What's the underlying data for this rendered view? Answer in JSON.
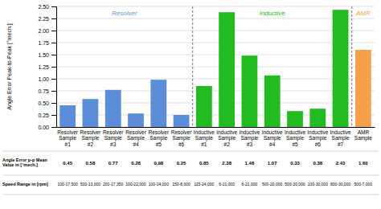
{
  "chart_data": {
    "type": "bar",
    "categories": [
      "Resolver\nSample\n#1",
      "Resolver\nSample\n#2",
      "Resolver\nSample\n#3",
      "Resolver\nSample\n#4",
      "Resolver\nSample\n#5",
      "Resolver\nSample\n#6",
      "Inductive\nSample\n#1",
      "Inductive\nSample\n#2",
      "Inductive\nSample\n#3",
      "Inductive\nSample\n#4",
      "Inductive\nSample\n#5",
      "Inductive\nSample\n#6",
      "Inductive\nSample\n#7",
      "AMR\nSample"
    ],
    "values": [
      0.45,
      0.58,
      0.77,
      0.28,
      0.98,
      0.25,
      0.85,
      2.38,
      1.48,
      1.07,
      0.33,
      0.38,
      2.43,
      1.6
    ],
    "colors": [
      "#5b8dd9",
      "#5b8dd9",
      "#5b8dd9",
      "#5b8dd9",
      "#5b8dd9",
      "#5b8dd9",
      "#22bb22",
      "#22bb22",
      "#22bb22",
      "#22bb22",
      "#22bb22",
      "#22bb22",
      "#22bb22",
      "#f5a04a"
    ],
    "ylabel": "Angle Error Peak-to-Peak [°mech.]",
    "ylim": [
      0,
      2.5
    ],
    "yticks": [
      {
        "value": 0,
        "label": "0.00"
      },
      0.25,
      {
        "value": 0.5,
        "label": "0.50"
      },
      0.75,
      {
        "value": 1,
        "label": "1.00"
      },
      1.25,
      {
        "value": 1.5,
        "label": "1.50"
      },
      1.75,
      {
        "value": 2,
        "label": "2.00"
      },
      2.25,
      {
        "value": 2.5,
        "label": "2.50"
      }
    ],
    "grid": true,
    "groups": [
      {
        "name": "Resolver",
        "color": "#5b9bd5"
      },
      {
        "name": "Inductive",
        "color": "#22bb22"
      },
      {
        "name": "AMR",
        "color": "#f5a04a"
      }
    ],
    "table_rows": [
      {
        "label": "Angle Error p-p Mean\nValue in [°mech.]",
        "cells": [
          "0.45",
          "0.58",
          "0.77",
          "0.28",
          "0.98",
          "0.25",
          "0.85",
          "2.38",
          "1.48",
          "1.07",
          "0.33",
          "0.38",
          "2.43",
          "1.60"
        ]
      },
      {
        "label": "Speed Range in [rpm]",
        "cells": [
          "100-17,500",
          "500-13,000",
          "200-17,350",
          "100-22,000",
          "100-14,000",
          "150-8,000",
          "115-24,000",
          "6-21,000",
          "6-21,000",
          "500-20,000",
          "500-30,000",
          "100-30,000",
          "800-30,000",
          "500-7,000"
        ]
      }
    ]
  }
}
